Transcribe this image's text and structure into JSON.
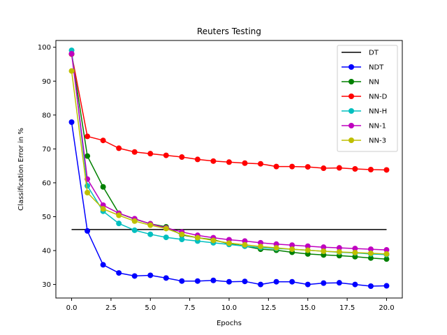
{
  "chart_data": {
    "type": "line",
    "title": "Reuters Testing",
    "xlabel": "Epochs",
    "ylabel": "Classification Error in %",
    "xlim": [
      -1.0,
      21.0
    ],
    "ylim": [
      26.0,
      102.0
    ],
    "xticks": [
      0.0,
      2.5,
      5.0,
      7.5,
      10.0,
      12.5,
      15.0,
      17.5,
      20.0
    ],
    "xtick_labels": [
      "0.0",
      "2.5",
      "5.0",
      "7.5",
      "10.0",
      "12.5",
      "15.0",
      "17.5",
      "20.0"
    ],
    "yticks": [
      30,
      40,
      50,
      60,
      70,
      80,
      90,
      100
    ],
    "ytick_labels": [
      "30",
      "40",
      "50",
      "60",
      "70",
      "80",
      "90",
      "100"
    ],
    "grid": false,
    "legend_position": "top-right",
    "x": [
      0,
      1,
      2,
      3,
      4,
      5,
      6,
      7,
      8,
      9,
      10,
      11,
      12,
      13,
      14,
      15,
      16,
      17,
      18,
      19,
      20
    ],
    "series": [
      {
        "name": "DT",
        "color": "#000000",
        "marker": false,
        "x": [
          0,
          20
        ],
        "values": [
          46.2,
          46.2
        ]
      },
      {
        "name": "NDT",
        "color": "#0000ff",
        "marker": true,
        "values": [
          77.9,
          45.8,
          35.8,
          33.4,
          32.5,
          32.7,
          31.9,
          31.0,
          31.0,
          31.2,
          30.8,
          30.9,
          30.0,
          30.8,
          30.8,
          30.0,
          30.4,
          30.5,
          30.0,
          29.5,
          29.6
        ]
      },
      {
        "name": "NN",
        "color": "#008000",
        "marker": true,
        "values": [
          98.0,
          67.9,
          58.8,
          51.0,
          49.3,
          47.9,
          47.0,
          44.6,
          43.8,
          43.2,
          42.0,
          41.3,
          40.4,
          40.1,
          39.5,
          39.0,
          38.7,
          38.5,
          38.2,
          37.8,
          37.5
        ]
      },
      {
        "name": "NN-D",
        "color": "#ff0000",
        "marker": true,
        "values": [
          98.0,
          73.7,
          72.5,
          70.2,
          69.1,
          68.6,
          68.1,
          67.6,
          66.9,
          66.4,
          66.1,
          65.8,
          65.6,
          64.8,
          64.8,
          64.7,
          64.3,
          64.4,
          64.1,
          63.9,
          63.8
        ]
      },
      {
        "name": "NN-H",
        "color": "#00bfbf",
        "marker": true,
        "values": [
          99.1,
          59.1,
          51.6,
          48.0,
          46.0,
          44.8,
          43.9,
          43.3,
          42.8,
          42.3,
          41.8,
          41.3,
          40.9,
          40.6,
          40.4,
          40.1,
          39.8,
          39.5,
          39.3,
          39.0,
          38.8
        ]
      },
      {
        "name": "NN-1",
        "color": "#bf00bf",
        "marker": true,
        "values": [
          98.1,
          61.1,
          53.4,
          51.0,
          49.4,
          47.9,
          46.7,
          45.5,
          44.5,
          43.8,
          43.2,
          42.8,
          42.3,
          41.9,
          41.6,
          41.3,
          41.0,
          40.8,
          40.6,
          40.4,
          40.2
        ]
      },
      {
        "name": "NN-3",
        "color": "#bfbf00",
        "marker": true,
        "values": [
          93.0,
          57.1,
          52.3,
          50.4,
          48.7,
          47.5,
          46.5,
          44.8,
          43.8,
          43.0,
          42.2,
          41.7,
          41.2,
          40.8,
          40.4,
          40.1,
          39.8,
          39.6,
          39.4,
          39.2,
          39.0
        ]
      }
    ]
  }
}
